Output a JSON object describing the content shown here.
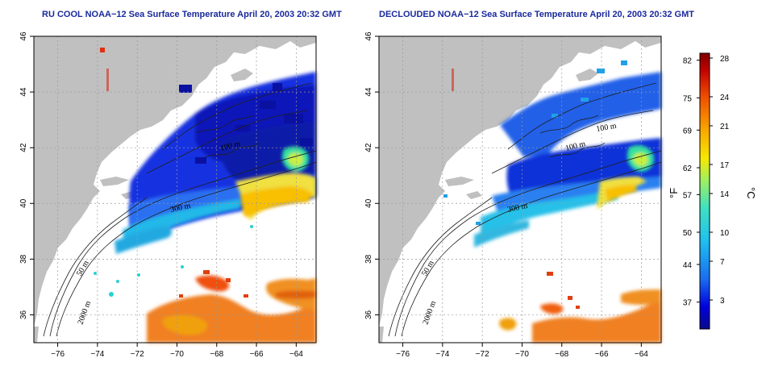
{
  "titles": {
    "left": "RU COOL NOAA−12 Sea Surface Temperature April 20, 2003 20:32 GMT",
    "right": "DECLOUDED NOAA−12 Sea Surface Temperature April 20, 2003 20:32 GMT"
  },
  "axes": {
    "x_ticks": [
      "−76",
      "−74",
      "−72",
      "−70",
      "−68",
      "−66",
      "−64"
    ],
    "x_values": [
      -76,
      -74,
      -72,
      -70,
      -68,
      -66,
      -64
    ],
    "y_ticks": [
      "36",
      "38",
      "40",
      "42",
      "44",
      "46"
    ],
    "y_values": [
      36,
      38,
      40,
      42,
      44,
      46
    ],
    "xlim": [
      -77.2,
      -63
    ],
    "ylim": [
      35,
      46
    ],
    "grid": "dotted"
  },
  "contour_labels": {
    "left": [
      "50 m",
      "2000 m",
      "300 m",
      "100 m"
    ],
    "right": [
      "50 m",
      "2000 m",
      "300 m",
      "100 m",
      "100 m"
    ]
  },
  "colorbar": {
    "unit_f": "°F",
    "unit_c": "°C",
    "f_ticks": [
      "82",
      "75",
      "69",
      "62",
      "57",
      "50",
      "44",
      "37"
    ],
    "f_values": [
      82,
      75,
      69,
      62,
      57,
      50,
      44,
      37
    ],
    "c_ticks": [
      "28",
      "24",
      "21",
      "17",
      "14",
      "10",
      "7",
      "3"
    ],
    "c_values": [
      28,
      24,
      21,
      17,
      14,
      10,
      7,
      3
    ],
    "c_range": [
      0,
      28.5
    ],
    "colors": [
      "#0a0a8a",
      "#0000dd",
      "#1a6cf0",
      "#20c0f0",
      "#40e0c0",
      "#a0f060",
      "#f8e800",
      "#f8a800",
      "#f05000",
      "#c00000",
      "#800000"
    ]
  },
  "colors": {
    "land": "#c0c0c0",
    "title": "#1a2a9c",
    "grid": "#9a9a9a"
  }
}
